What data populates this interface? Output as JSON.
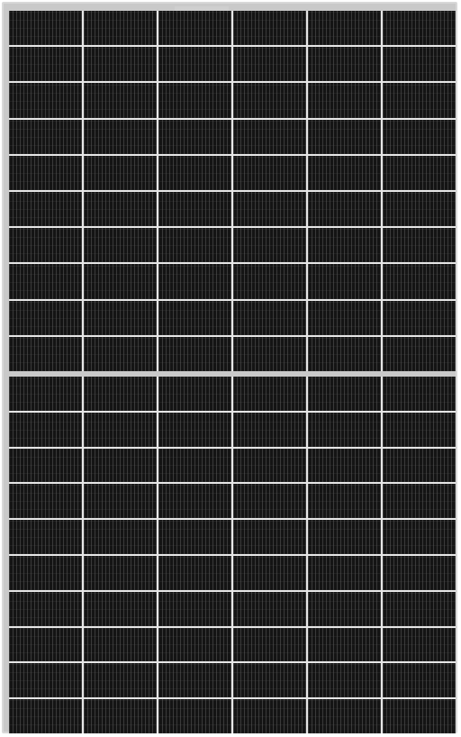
{
  "image": {
    "subject": "solar-panel",
    "frame_color": "#d8d8d8",
    "cell_color": "#141414",
    "grid_line_color": "#e6e6e6"
  },
  "panel": {
    "columns": 6,
    "rows_per_half": 10,
    "halves": 2
  }
}
